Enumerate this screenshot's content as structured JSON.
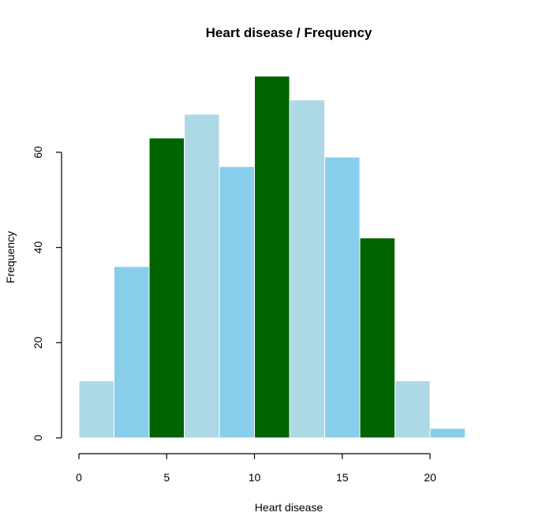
{
  "chart_data": {
    "type": "bar",
    "title": "Heart disease / Frequency",
    "xlabel": "Heart disease",
    "ylabel": "Frequency",
    "bin_edges": [
      0,
      2,
      4,
      6,
      8,
      10,
      12,
      14,
      16,
      18,
      20,
      22
    ],
    "values": [
      12,
      36,
      63,
      68,
      57,
      76,
      71,
      59,
      42,
      12,
      2
    ],
    "bar_colors": [
      "#add8e6",
      "#87ceeb",
      "#006400",
      "#add8e6",
      "#87ceeb",
      "#006400",
      "#add8e6",
      "#87ceeb",
      "#006400",
      "#add8e6",
      "#87ceeb"
    ],
    "xlim": [
      0,
      20
    ],
    "ylim": [
      0,
      60
    ],
    "x_ticks": [
      0,
      5,
      10,
      15,
      20
    ],
    "y_ticks": [
      0,
      20,
      40,
      60
    ],
    "grid": false,
    "legend": "none"
  }
}
